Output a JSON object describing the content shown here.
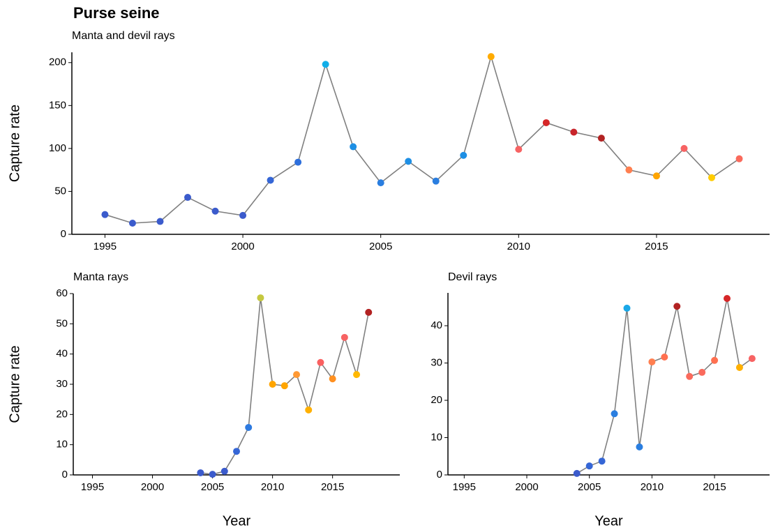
{
  "title": "Purse seine",
  "chart_data": [
    {
      "type": "line",
      "subtitle": "Manta and devil rays",
      "y_label": "Capture rate",
      "line_color": "#808080",
      "x": [
        1995,
        1996,
        1997,
        1998,
        1999,
        2000,
        2001,
        2002,
        2003,
        2004,
        2005,
        2006,
        2007,
        2008,
        2009,
        2010,
        2011,
        2012,
        2013,
        2014,
        2015,
        2016,
        2017,
        2018
      ],
      "values": [
        23,
        13,
        15,
        43,
        27,
        22,
        63,
        84,
        198,
        102,
        60,
        85,
        62,
        92,
        207,
        99,
        130,
        119,
        112,
        75,
        68,
        100,
        66,
        88
      ],
      "colors": [
        "#3b5bcc",
        "#3b5bcc",
        "#3b5bcc",
        "#3b5bcc",
        "#3b5bcc",
        "#3b5bcc",
        "#3566d6",
        "#2d6fdc",
        "#12aee8",
        "#1e8fe4",
        "#2a7ee0",
        "#1e8fe4",
        "#2a7ee0",
        "#1e8fe4",
        "#ffab00",
        "#f76363",
        "#d62728",
        "#c8242b",
        "#b22222",
        "#ff7f50",
        "#ffa500",
        "#f76363",
        "#ffcc00",
        "#fa6a5c"
      ],
      "xlim": [
        1993.8,
        2019.1
      ],
      "xticks": [
        1995,
        2000,
        2005,
        2010,
        2015
      ],
      "ylim": [
        0,
        212
      ],
      "yticks": [
        0,
        50,
        100,
        150,
        200
      ]
    },
    {
      "type": "line",
      "subtitle": "Manta rays",
      "y_label": "Capture rate",
      "x_label": "Year",
      "line_color": "#808080",
      "x": [
        2004,
        2005,
        2006,
        2007,
        2008,
        2009,
        2010,
        2011,
        2012,
        2013,
        2014,
        2015,
        2016,
        2017,
        2018
      ],
      "values": [
        0.7,
        0.2,
        1.2,
        7.8,
        15.7,
        58.6,
        30,
        29.5,
        33.2,
        21.5,
        37.2,
        31.8,
        45.5,
        33.2,
        53.8
      ],
      "colors": [
        "#3b5bcc",
        "#3b5bcc",
        "#3b5bcc",
        "#3566d6",
        "#2d7ae0",
        "#c5c840",
        "#ffa500",
        "#ffa500",
        "#ff9933",
        "#ffb000",
        "#fa6060",
        "#ff9020",
        "#f76363",
        "#ffb800",
        "#b22222"
      ],
      "xlim": [
        1993.4,
        2020.6
      ],
      "xticks": [
        1995,
        2000,
        2005,
        2010,
        2015
      ],
      "ylim": [
        0,
        60
      ],
      "yticks": [
        0,
        10,
        20,
        30,
        40,
        50,
        60
      ]
    },
    {
      "type": "line",
      "subtitle": "Devil rays",
      "x_label": "Year",
      "line_color": "#808080",
      "x": [
        2004,
        2005,
        2006,
        2007,
        2008,
        2009,
        2010,
        2011,
        2012,
        2013,
        2014,
        2015,
        2016,
        2017,
        2018
      ],
      "values": [
        0.4,
        2.4,
        3.7,
        16.4,
        44.7,
        7.5,
        30.3,
        31.6,
        45.2,
        26.4,
        27.5,
        30.7,
        47.3,
        28.8,
        31.2
      ],
      "colors": [
        "#3b5bcc",
        "#3566d6",
        "#3566d6",
        "#2a7ee0",
        "#1aa8e8",
        "#2a7ee0",
        "#ff7f50",
        "#ff7050",
        "#b22222",
        "#fa6a5c",
        "#fa6a5c",
        "#ff7050",
        "#d62728",
        "#ffb000",
        "#f76363"
      ],
      "xlim": [
        1993.7,
        2019.4
      ],
      "xticks": [
        1995,
        2000,
        2005,
        2010,
        2015
      ],
      "ylim": [
        0,
        48.8
      ],
      "yticks": [
        0,
        10,
        20,
        30,
        40
      ]
    }
  ]
}
